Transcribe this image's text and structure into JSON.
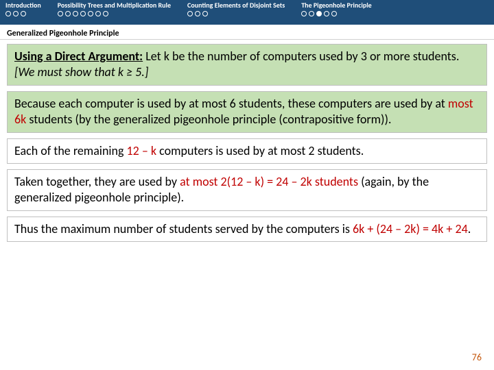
{
  "nav": {
    "sections": [
      {
        "title": "Introduction",
        "dots": [
          false,
          false,
          false
        ]
      },
      {
        "title": "Possibility Trees and Multiplication Rule",
        "dots": [
          false,
          false,
          false,
          false,
          false,
          false,
          false
        ]
      },
      {
        "title": "Counting Elements of Disjoint Sets",
        "dots": [
          false,
          false,
          false
        ]
      },
      {
        "title": "The Pigeonhole Principle",
        "dots": [
          false,
          false,
          true,
          false,
          false
        ]
      }
    ]
  },
  "subtitle": "Generalized Pigeonhole Principle",
  "box1": {
    "lead": "Using a Direct Argument:",
    "rest1": " Let k be the number of computers used by 3 or more students. ",
    "italic": "[We must show that k ≥ 5.]"
  },
  "box2": {
    "t1": "Because each computer is used by at most 6 students, these computers are used by at ",
    "em": "most 6k ",
    "t2": "students (by the generalized pigeonhole principle (contrapositive form))."
  },
  "box3": {
    "t1": "Each of the remaining ",
    "em": "12 – k",
    "t2": " computers is used by at most 2 students."
  },
  "box4": {
    "t1": "Taken together, they are used by ",
    "em": "at most 2(12 – k) = 24 – 2k students",
    "t2": " (again, by the generalized pigeonhole principle)."
  },
  "box5": {
    "t1": "Thus the maximum number of students served by the computers is ",
    "em": "6k + (24 – 2k) = 4k + 24",
    "t2": "."
  },
  "pageNum": "76"
}
